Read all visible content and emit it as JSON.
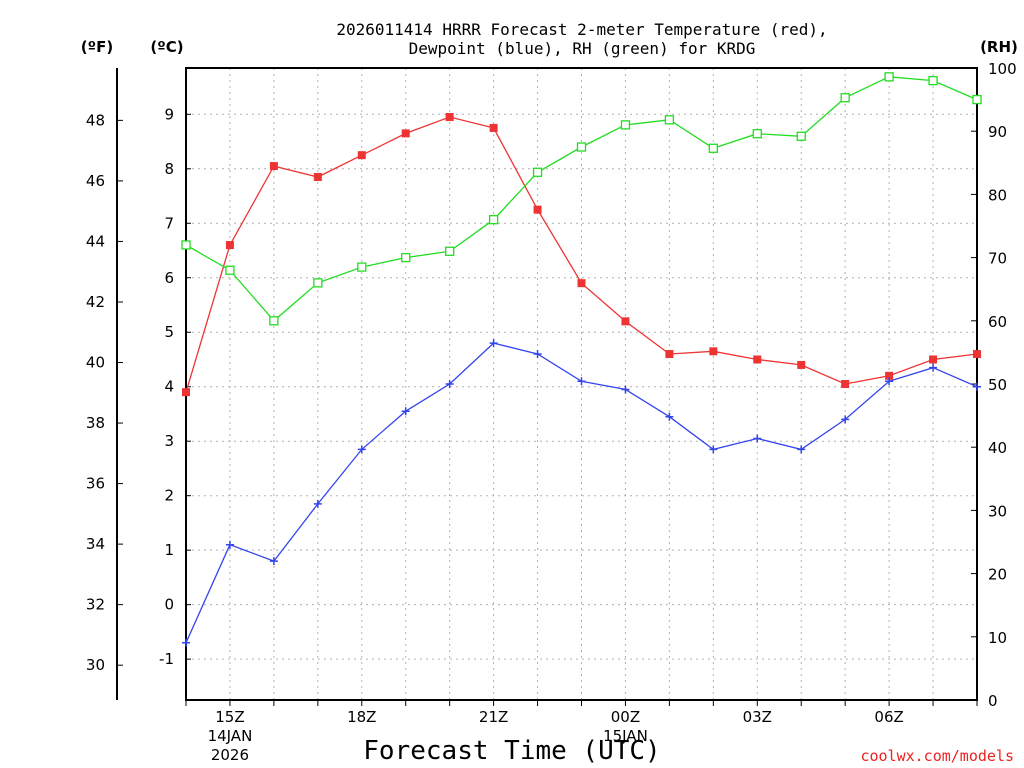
{
  "chart_data": {
    "type": "line",
    "title_line1": "2026011414 HRRR Forecast 2-meter Temperature (red),",
    "title_line2": "Dewpoint (blue), RH (green) for KRDG",
    "xlabel": "Forecast Time (UTC)",
    "credit": "coolwx.com/models",
    "units": {
      "fahrenheit": "(ºF)",
      "celsius": "(ºC)",
      "rh": "(RH)"
    },
    "x_hours": [
      14,
      15,
      16,
      17,
      18,
      19,
      20,
      21,
      22,
      23,
      24,
      25,
      26,
      27,
      28,
      29,
      30,
      31,
      32
    ],
    "x_ticks": [
      {
        "hour": 15,
        "label": "15Z",
        "sub1": "14JAN",
        "sub2": "2026"
      },
      {
        "hour": 18,
        "label": "18Z",
        "sub1": "",
        "sub2": ""
      },
      {
        "hour": 21,
        "label": "21Z",
        "sub1": "",
        "sub2": ""
      },
      {
        "hour": 24,
        "label": "00Z",
        "sub1": "15JAN",
        "sub2": ""
      },
      {
        "hour": 27,
        "label": "03Z",
        "sub1": "",
        "sub2": ""
      },
      {
        "hour": 30,
        "label": "06Z",
        "sub1": "",
        "sub2": ""
      }
    ],
    "celsius_ticks": [
      "-1",
      "0",
      "1",
      "2",
      "3",
      "4",
      "5",
      "6",
      "7",
      "8",
      "9"
    ],
    "fahrenheit_ticks": [
      "30",
      "32",
      "34",
      "36",
      "38",
      "40",
      "42",
      "44",
      "46",
      "48"
    ],
    "rh_ticks": [
      "0",
      "10",
      "20",
      "30",
      "40",
      "50",
      "60",
      "70",
      "80",
      "90",
      "100"
    ],
    "ylim_celsius": [
      -1.75,
      9.85
    ],
    "ylim_rh": [
      0,
      100
    ],
    "series": [
      {
        "name": "Temperature",
        "color": "#ee3333",
        "marker": "filled-square",
        "axis": "celsius",
        "values": [
          3.9,
          6.6,
          8.05,
          7.85,
          8.25,
          8.65,
          8.95,
          8.75,
          7.25,
          5.9,
          5.2,
          4.6,
          4.65,
          4.5,
          4.4,
          4.05,
          4.2,
          4.5,
          4.6
        ]
      },
      {
        "name": "Dewpoint",
        "color": "#3344ee",
        "marker": "plus",
        "axis": "celsius",
        "values": [
          -0.7,
          1.1,
          0.8,
          1.85,
          2.85,
          3.55,
          4.05,
          4.8,
          4.6,
          4.1,
          3.95,
          3.45,
          2.85,
          3.05,
          2.85,
          3.4,
          4.1,
          4.35,
          4.0
        ]
      },
      {
        "name": "RH",
        "color": "#22dd22",
        "marker": "open-square",
        "axis": "rh",
        "values": [
          72,
          68,
          60,
          66,
          68.5,
          70,
          71,
          76,
          83.5,
          87.5,
          91,
          91.8,
          87.3,
          89.6,
          89.2,
          95.3,
          98.6,
          98,
          95
        ]
      }
    ]
  }
}
